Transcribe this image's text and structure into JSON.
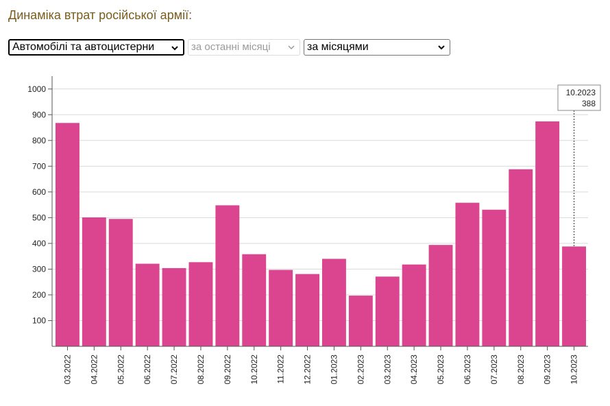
{
  "heading": "Динаміка втрат російської армії:",
  "controls": {
    "category": "Автомобілі та автоцистерни",
    "period": "за останні місяці",
    "grouping": "за місяцями"
  },
  "colors": {
    "bar": "#db4590",
    "heading": "#7a5c1e",
    "grid": "#d9d9d9"
  },
  "tooltip": {
    "label": "10.2023",
    "value": "388"
  },
  "chart_data": {
    "type": "bar",
    "title": "",
    "xlabel": "",
    "ylabel": "",
    "ylim": [
      0,
      1050
    ],
    "yticks": [
      100,
      200,
      300,
      400,
      500,
      600,
      700,
      800,
      900,
      1000
    ],
    "grid": true,
    "categories": [
      "03.2022",
      "04.2022",
      "05.2022",
      "06.2022",
      "07.2022",
      "08.2022",
      "09.2022",
      "10.2022",
      "11.2022",
      "12.2022",
      "01.2023",
      "02.2023",
      "03.2023",
      "04.2023",
      "05.2023",
      "06.2023",
      "07.2023",
      "08.2023",
      "09.2023",
      "10.2023"
    ],
    "values": [
      868,
      501,
      495,
      321,
      304,
      327,
      548,
      358,
      297,
      281,
      340,
      197,
      271,
      318,
      394,
      558,
      531,
      688,
      874,
      388
    ]
  }
}
